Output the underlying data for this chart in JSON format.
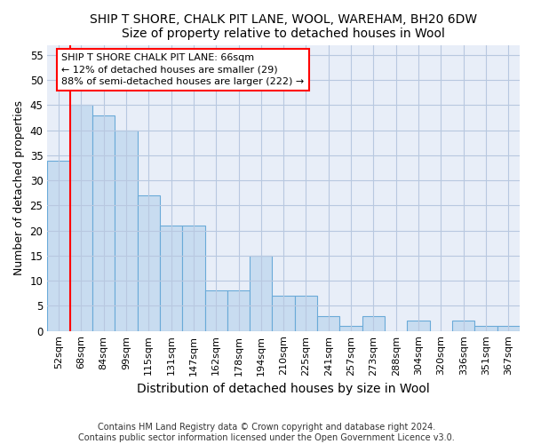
{
  "title": "SHIP T SHORE, CHALK PIT LANE, WOOL, WAREHAM, BH20 6DW",
  "subtitle": "Size of property relative to detached houses in Wool",
  "xlabel": "Distribution of detached houses by size in Wool",
  "ylabel": "Number of detached properties",
  "bar_color": "#c8dcf0",
  "bar_edge_color": "#6aaad8",
  "categories": [
    "52sqm",
    "68sqm",
    "84sqm",
    "99sqm",
    "115sqm",
    "131sqm",
    "147sqm",
    "162sqm",
    "178sqm",
    "194sqm",
    "210sqm",
    "225sqm",
    "241sqm",
    "257sqm",
    "273sqm",
    "288sqm",
    "304sqm",
    "320sqm",
    "336sqm",
    "351sqm",
    "367sqm"
  ],
  "values": [
    34,
    45,
    43,
    40,
    27,
    21,
    21,
    8,
    8,
    15,
    7,
    7,
    3,
    1,
    3,
    0,
    2,
    0,
    2,
    1,
    1
  ],
  "ylim": [
    0,
    57
  ],
  "yticks": [
    0,
    5,
    10,
    15,
    20,
    25,
    30,
    35,
    40,
    45,
    50,
    55
  ],
  "marker_label": "SHIP T SHORE CHALK PIT LANE: 66sqm",
  "annotation_line1": "← 12% of detached houses are smaller (29)",
  "annotation_line2": "88% of semi-detached houses are larger (222) →",
  "footer_line1": "Contains HM Land Registry data © Crown copyright and database right 2024.",
  "footer_line2": "Contains public sector information licensed under the Open Government Licence v3.0.",
  "background_color": "#ffffff",
  "plot_bg_color": "#e8eef8",
  "grid_color": "#b8c8e0"
}
